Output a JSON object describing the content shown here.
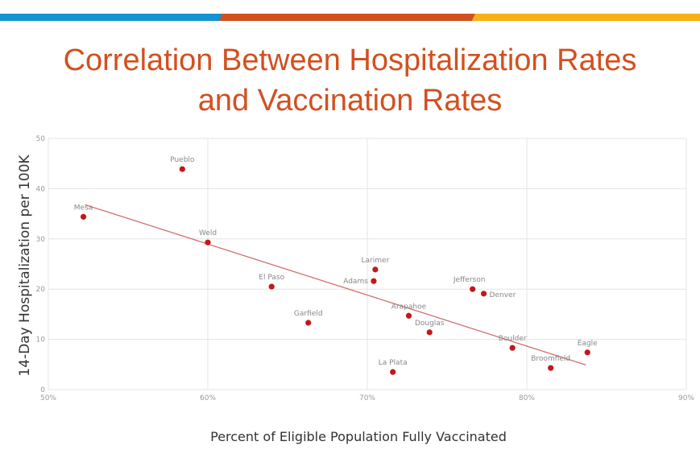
{
  "colors": {
    "blue": "#1592d0",
    "orange": "#d2501f",
    "yellow": "#f8b01a",
    "point": "#c4161c",
    "trend": "#d07070"
  },
  "chart_data": {
    "type": "scatter",
    "title": "Correlation Between Hospitalization Rates and Vaccination Rates",
    "xlabel": "Percent of Eligible Population Fully Vaccinated",
    "ylabel": "14-Day Hospitalization per 100K",
    "xlim": [
      50,
      90
    ],
    "ylim": [
      0,
      50
    ],
    "xticks": [
      50,
      60,
      70,
      80,
      90
    ],
    "xtick_labels": [
      "50%",
      "60%",
      "70%",
      "80%",
      "90%"
    ],
    "yticks": [
      0,
      10,
      20,
      30,
      40,
      50
    ],
    "ytick_labels": [
      "0",
      "10",
      "20",
      "30",
      "40",
      "50"
    ],
    "grid": true,
    "points": [
      {
        "label": "Mesa",
        "x": 52.2,
        "y": 34.4
      },
      {
        "label": "Pueblo",
        "x": 58.4,
        "y": 43.9
      },
      {
        "label": "Weld",
        "x": 60.0,
        "y": 29.3
      },
      {
        "label": "El Paso",
        "x": 64.0,
        "y": 20.5
      },
      {
        "label": "Garfield",
        "x": 66.3,
        "y": 13.3
      },
      {
        "label": "Larimer",
        "x": 70.5,
        "y": 23.9
      },
      {
        "label": "Adams",
        "x": 70.4,
        "y": 21.6
      },
      {
        "label": "La Plata",
        "x": 71.6,
        "y": 3.5
      },
      {
        "label": "Arapahoe",
        "x": 72.6,
        "y": 14.7
      },
      {
        "label": "Douglas",
        "x": 73.9,
        "y": 11.4
      },
      {
        "label": "Jefferson",
        "x": 76.6,
        "y": 20.0
      },
      {
        "label": "Denver",
        "x": 77.3,
        "y": 19.1
      },
      {
        "label": "Boulder",
        "x": 79.1,
        "y": 8.3
      },
      {
        "label": "Broomfield",
        "x": 81.5,
        "y": 4.3
      },
      {
        "label": "Eagle",
        "x": 83.8,
        "y": 7.4
      }
    ],
    "trendline": {
      "x": [
        52.3,
        83.7
      ],
      "y": [
        36.8,
        4.9
      ]
    }
  }
}
